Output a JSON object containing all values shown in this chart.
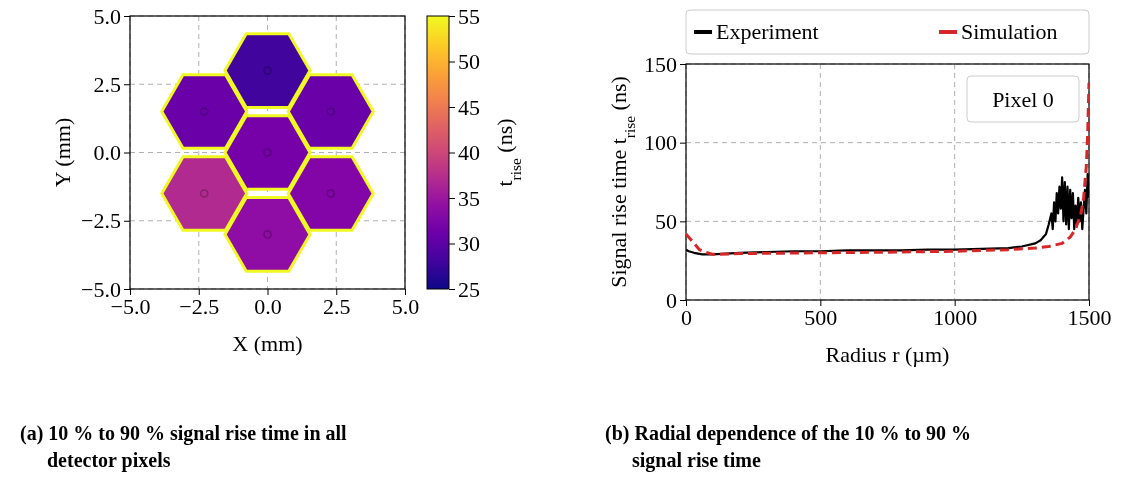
{
  "chart_data": [
    {
      "type": "scatter",
      "xlabel": "X (mm)",
      "ylabel": "Y (mm)",
      "clabel": "t$_{rise}$ (ns)",
      "marker": "circle",
      "grid": true,
      "xlim": [
        -5,
        5
      ],
      "xticks": [
        {
          "value": -5,
          "label": "−5.0"
        },
        {
          "value": -2.5,
          "label": "−2.5"
        },
        {
          "value": 0,
          "label": "0.0"
        },
        {
          "value": 2.5,
          "label": "2.5"
        },
        {
          "value": 5,
          "label": "5.0"
        }
      ],
      "ylim": [
        -5,
        5
      ],
      "yticks": [
        {
          "value": -5,
          "label": "−5.0"
        },
        {
          "value": -2.5,
          "label": "−2.5"
        },
        {
          "value": 0,
          "label": "0.0"
        },
        {
          "value": 2.5,
          "label": "2.5"
        },
        {
          "value": 5,
          "label": "5.0"
        }
      ],
      "clim": [
        25,
        55
      ],
      "cticks": [
        25,
        30,
        35,
        40,
        45,
        50,
        55
      ],
      "x": [
        0,
        -2.3,
        2.3,
        0,
        -2.3,
        2.3,
        0
      ],
      "values": [
        3.0,
        1.5,
        1.5,
        0.0,
        -1.5,
        -1.5,
        -3.0
      ],
      "cvalues": [
        28,
        31,
        31,
        32,
        37,
        33,
        34
      ],
      "annotations": [
        "(a) 10 % to 90 % signal rise time in all detector pixels"
      ]
    },
    {
      "type": "line",
      "xlabel": "Radius r (µm)",
      "ylabel": "Signal rise time t$_{rise}$ (ns)",
      "grid": true,
      "legend": "top",
      "xlim": [
        0,
        1500
      ],
      "xticks": [
        0,
        500,
        1000,
        1500
      ],
      "ylim": [
        0,
        150
      ],
      "yticks": [
        0,
        50,
        100,
        150
      ],
      "annotations": [
        "Pixel 0",
        "(b) Radial dependence of the 10 % to 90 % signal rise time"
      ],
      "series": [
        {
          "name": "Experiment",
          "color": "#000000",
          "line_style": "solid",
          "x": [
            0,
            10,
            30,
            60,
            100,
            200,
            300,
            400,
            500,
            600,
            700,
            800,
            900,
            1000,
            1100,
            1200,
            1250,
            1300,
            1320,
            1340,
            1350,
            1360,
            1365,
            1370,
            1375,
            1380,
            1385,
            1390,
            1395,
            1400,
            1405,
            1410,
            1415,
            1420,
            1425,
            1430,
            1435,
            1440,
            1445,
            1450,
            1455,
            1460,
            1465,
            1470,
            1475,
            1480,
            1485,
            1490,
            1495,
            1500
          ],
          "values": [
            32,
            31,
            30,
            29,
            29,
            30,
            30.5,
            31,
            31,
            31.5,
            31.5,
            31.5,
            32,
            32,
            32.5,
            33,
            34,
            36,
            38,
            42,
            48,
            55,
            45,
            62,
            50,
            68,
            55,
            72,
            58,
            78,
            50,
            75,
            48,
            72,
            45,
            70,
            52,
            68,
            45,
            60,
            48,
            65,
            50,
            62,
            45,
            58,
            70,
            55,
            80,
            65
          ]
        },
        {
          "name": "Simulation",
          "color": "#d62728",
          "line_style": "dashed",
          "x": [
            0,
            20,
            50,
            80,
            100,
            200,
            500,
            800,
            1000,
            1200,
            1300,
            1350,
            1400,
            1430,
            1450,
            1470,
            1480,
            1490,
            1495,
            1500
          ],
          "values": [
            42,
            38,
            32,
            30,
            29,
            29.5,
            30,
            30.5,
            31,
            32,
            33,
            34,
            36,
            40,
            45,
            55,
            65,
            85,
            105,
            138
          ]
        }
      ]
    }
  ]
}
